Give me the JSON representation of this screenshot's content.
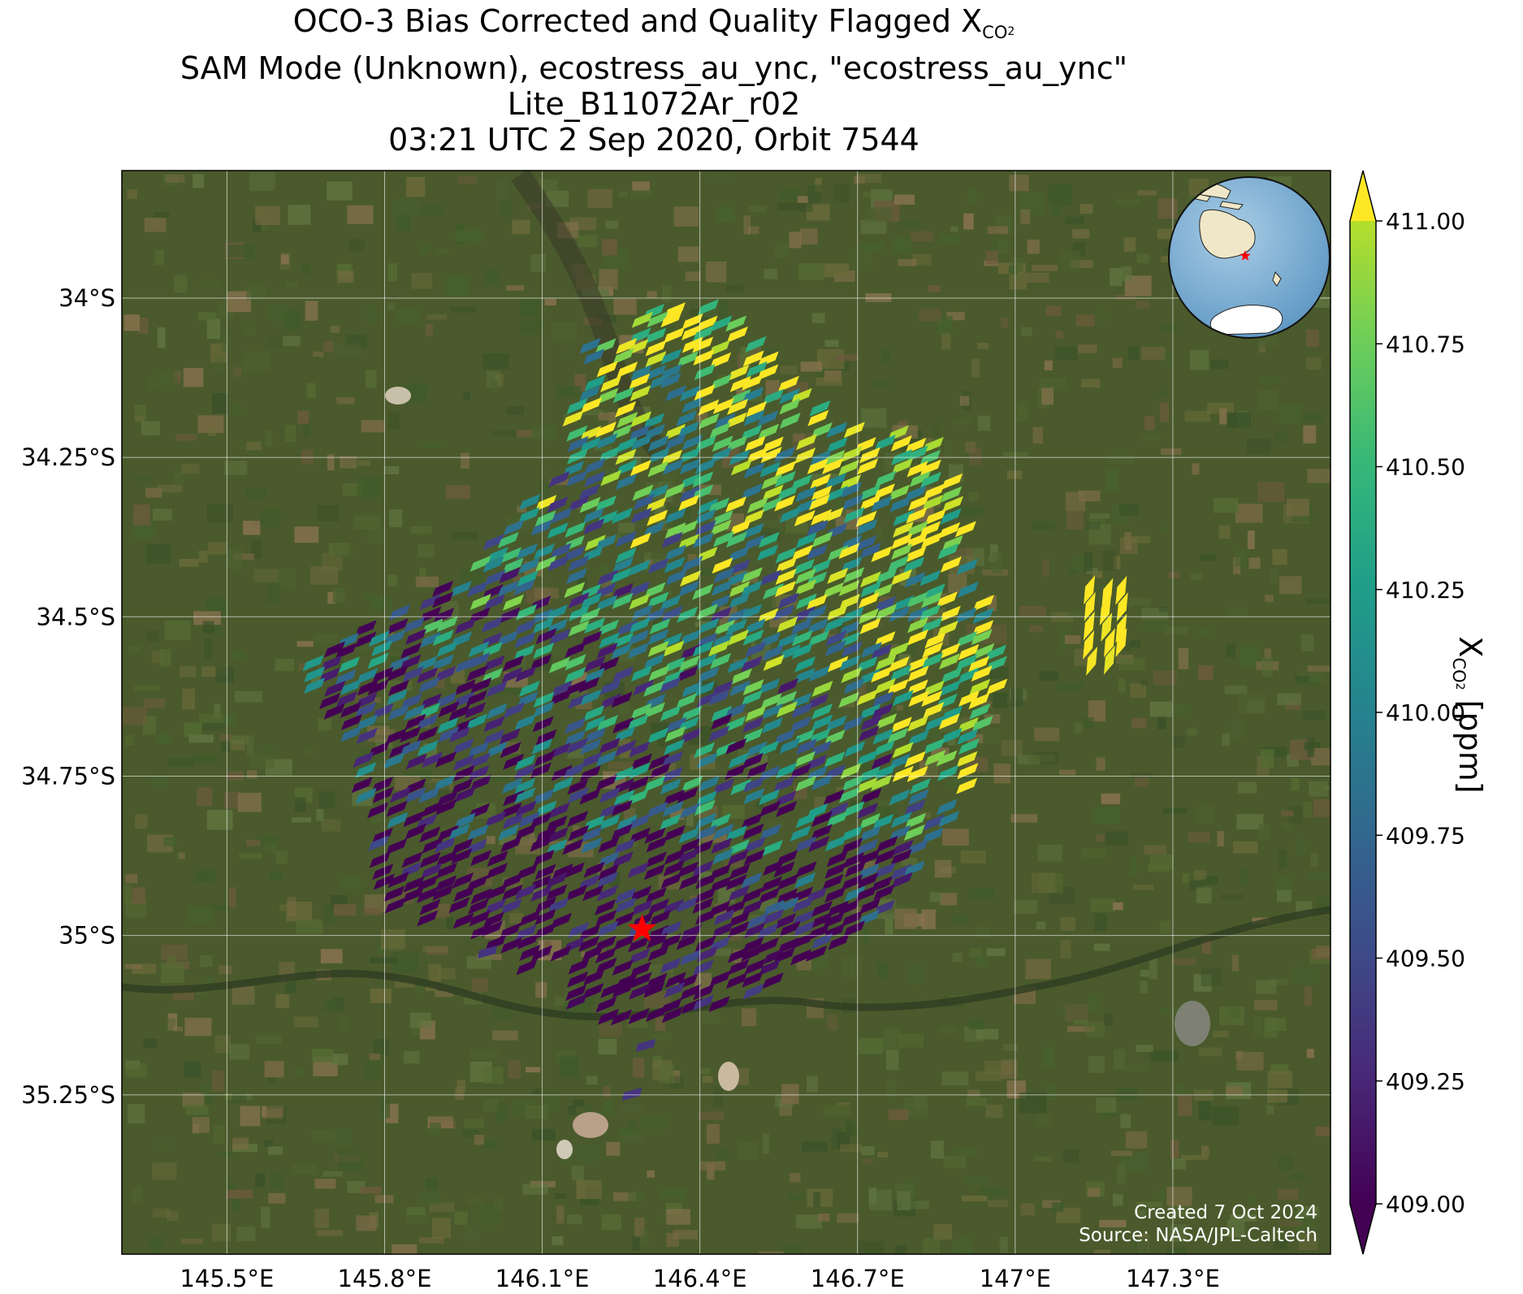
{
  "title": {
    "line1_prefix": "OCO-3 Bias Corrected and Quality Flagged X",
    "line1_sub": "CO",
    "line1_sub2": "2",
    "line2": "SAM Mode (Unknown), ecostress_au_ync, \"ecostress_au_ync\"",
    "line3": "Lite_B11072Ar_r02",
    "line4": "03:21 UTC 2 Sep 2020, Orbit 7544"
  },
  "map": {
    "lon_range": [
      145.3,
      147.6
    ],
    "lat_range": [
      -35.5,
      -33.8
    ],
    "lon_ticks": [
      {
        "value": 145.5,
        "label": "145.5°E"
      },
      {
        "value": 145.8,
        "label": "145.8°E"
      },
      {
        "value": 146.1,
        "label": "146.1°E"
      },
      {
        "value": 146.4,
        "label": "146.4°E"
      },
      {
        "value": 146.7,
        "label": "146.7°E"
      },
      {
        "value": 147.0,
        "label": "147°E"
      },
      {
        "value": 147.3,
        "label": "147.3°E"
      }
    ],
    "lat_ticks": [
      {
        "value": -34.0,
        "label": "34°S"
      },
      {
        "value": -34.25,
        "label": "34.25°S"
      },
      {
        "value": -34.5,
        "label": "34.5°S"
      },
      {
        "value": -34.75,
        "label": "34.75°S"
      },
      {
        "value": -35.0,
        "label": "35°S"
      },
      {
        "value": -35.25,
        "label": "35.25°S"
      }
    ],
    "target_marker": {
      "lon": 146.29,
      "lat": -34.99,
      "color": "#ff0000",
      "icon": "star-icon"
    },
    "background": "satellite-imagery",
    "inset": "globe-locator"
  },
  "credit": {
    "created": "Created 7 Oct 2024",
    "source": "Source: NASA/JPL-Caltech"
  },
  "colorbar": {
    "label_prefix": "X",
    "label_sub": "CO",
    "label_sub2": "2",
    "label_suffix": " [ppm]",
    "min": 409.0,
    "max": 411.0,
    "extend": "both",
    "colormap": "viridis",
    "ticks": [
      {
        "value": 411.0,
        "label": "411.00"
      },
      {
        "value": 410.75,
        "label": "410.75"
      },
      {
        "value": 410.5,
        "label": "410.50"
      },
      {
        "value": 410.25,
        "label": "410.25"
      },
      {
        "value": 410.0,
        "label": "410.00"
      },
      {
        "value": 409.75,
        "label": "409.75"
      },
      {
        "value": 409.5,
        "label": "409.50"
      },
      {
        "value": 409.25,
        "label": "409.25"
      },
      {
        "value": 409.0,
        "label": "409.00"
      }
    ]
  }
}
